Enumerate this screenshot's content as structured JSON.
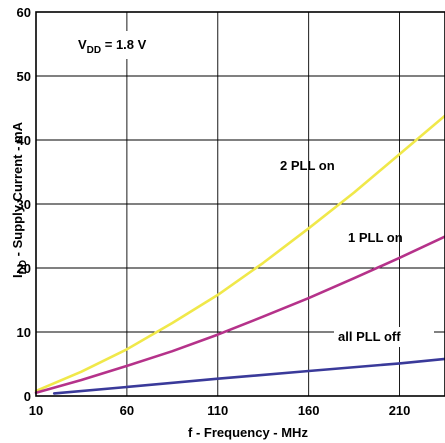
{
  "chart_data": {
    "type": "line",
    "title": "",
    "xlabel": "f - Frequency - MHz",
    "ylabel": {
      "main": "I",
      "sub": "DD",
      "rest": " - Supply Current - mA"
    },
    "xlim": [
      10,
      235
    ],
    "ylim": [
      0,
      60
    ],
    "xticks": [
      10,
      60,
      110,
      160,
      210
    ],
    "yticks": [
      0,
      10,
      20,
      30,
      40,
      50,
      60
    ],
    "grid": true,
    "legend": "none",
    "condition": {
      "main": "V",
      "sub": "DD",
      "rest": " = 1.8 V"
    },
    "series": [
      {
        "name": "2 PLL on",
        "color": "#f0e84a",
        "x": [
          10,
          35,
          60,
          85,
          110,
          135,
          160,
          185,
          210,
          235
        ],
        "y": [
          0.8,
          3.8,
          7.3,
          11.4,
          15.8,
          20.8,
          26.2,
          31.8,
          37.8,
          43.8
        ]
      },
      {
        "name": "1 PLL on",
        "color": "#b5328a",
        "x": [
          10,
          35,
          60,
          85,
          110,
          135,
          160,
          185,
          210,
          235
        ],
        "y": [
          0.5,
          2.5,
          4.7,
          7.0,
          9.6,
          12.4,
          15.3,
          18.4,
          21.6,
          24.9
        ]
      },
      {
        "name": "all PLL off",
        "color": "#3a3a9a",
        "x": [
          20,
          60,
          110,
          160,
          210,
          235
        ],
        "y": [
          0.4,
          1.4,
          2.7,
          3.9,
          5.1,
          5.8
        ]
      }
    ],
    "annotations": [
      {
        "text": "2 PLL on",
        "series": 0
      },
      {
        "text": "1 PLL on",
        "series": 1
      },
      {
        "text": "all PLL off",
        "series": 2
      }
    ]
  }
}
